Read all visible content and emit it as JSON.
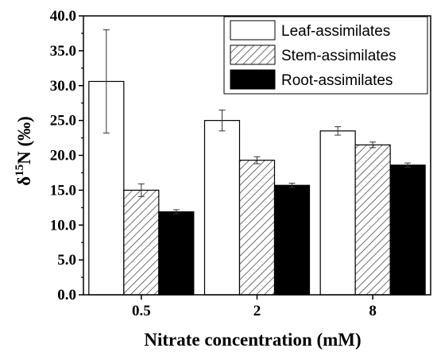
{
  "chart_data": {
    "type": "bar",
    "title": "",
    "xlabel": "Nitrate concentration (mM)",
    "ylabel_main": "δ",
    "ylabel_sup": "15",
    "ylabel_rest": "N (‰)",
    "categories": [
      "0.5",
      "2",
      "8"
    ],
    "ylim": [
      0,
      40
    ],
    "yticks": [
      "0.0",
      "5.0",
      "10.0",
      "15.0",
      "20.0",
      "25.0",
      "30.0",
      "35.0",
      "40.0"
    ],
    "ytick_values": [
      0,
      5,
      10,
      15,
      20,
      25,
      30,
      35,
      40
    ],
    "grid": false,
    "legend_position": "top-right",
    "series": [
      {
        "name": "Leaf-assimilates",
        "fill": "white",
        "values": [
          30.6,
          25.0,
          23.5
        ],
        "errors": [
          7.4,
          1.5,
          0.6
        ]
      },
      {
        "name": "Stem-assimilates",
        "fill": "hatch",
        "values": [
          15.0,
          19.3,
          21.5
        ],
        "errors": [
          0.9,
          0.5,
          0.4
        ]
      },
      {
        "name": "Root-assimilates",
        "fill": "black",
        "values": [
          11.9,
          15.7,
          18.6
        ],
        "errors": [
          0.3,
          0.3,
          0.3
        ]
      }
    ]
  }
}
